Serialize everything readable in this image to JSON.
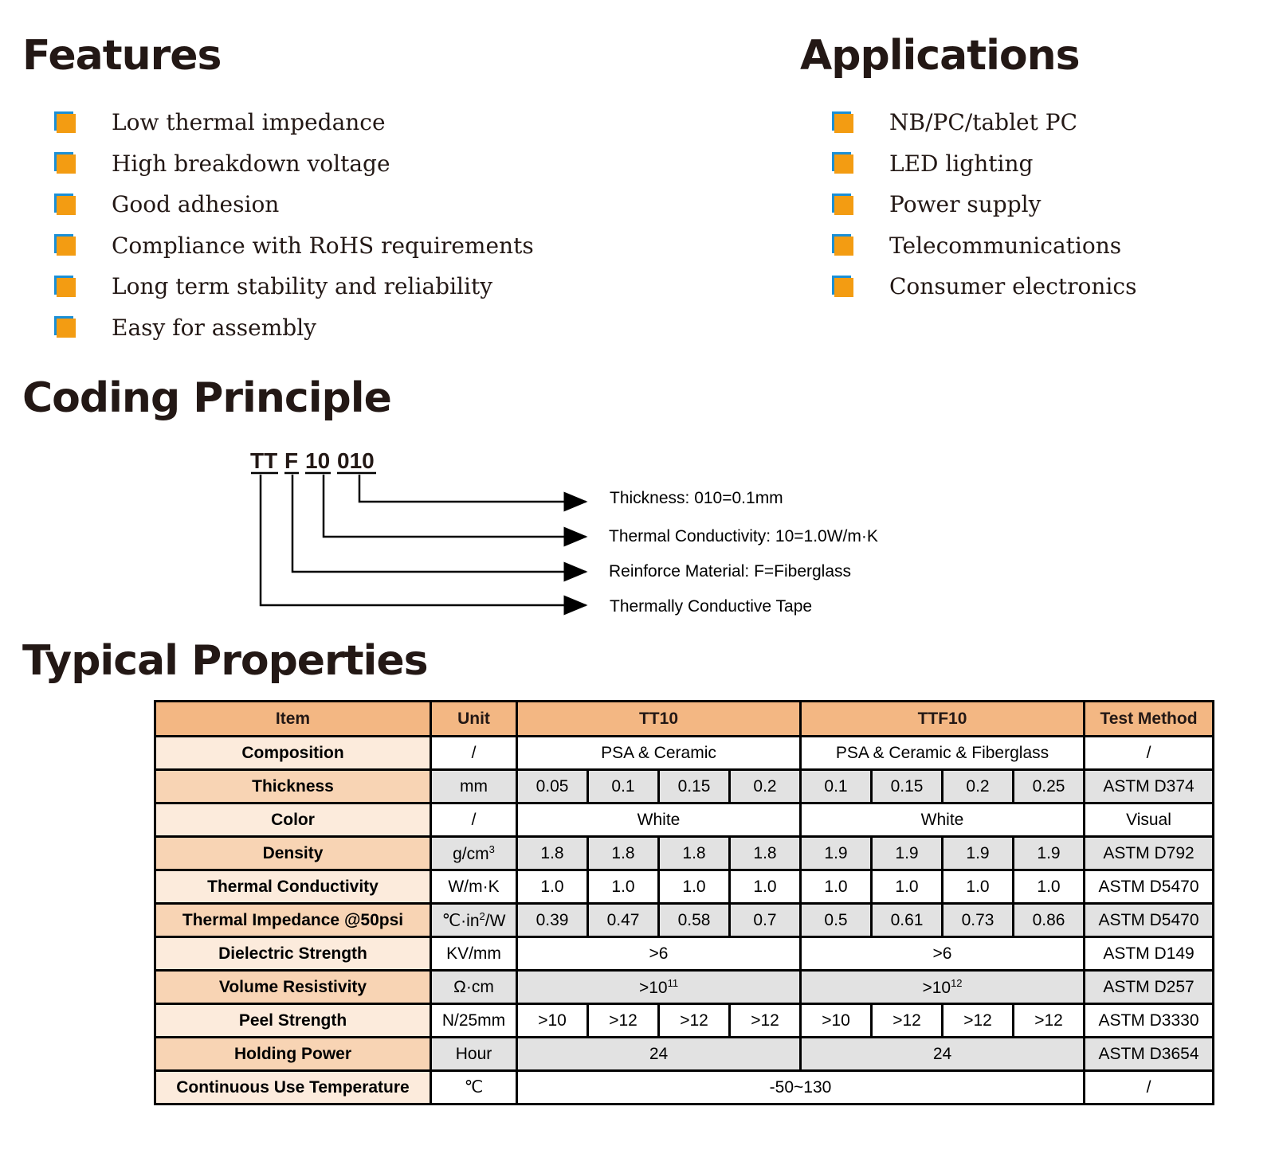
{
  "features": {
    "title": "Features",
    "items": [
      "Low thermal impedance",
      "High breakdown voltage",
      "Good adhesion",
      "Compliance with RoHS requirements",
      "Long term stability and reliability",
      "Easy for assembly"
    ]
  },
  "applications": {
    "title": "Applications",
    "items": [
      "NB/PC/tablet PC",
      "LED lighting",
      "Power supply",
      "Telecommunications",
      "Consumer electronics"
    ]
  },
  "bullet_colors": {
    "front": "#f39c12",
    "back": "#1a8fd6"
  },
  "coding": {
    "title": "Coding Principle",
    "parts": [
      "TT",
      "F",
      "10",
      "010"
    ],
    "labels": [
      "Thickness: 010=0.1mm",
      "Thermal Conductivity: 10=1.0W/m·K",
      "Reinforce Material: F=Fiberglass",
      "Thermally Conductive Tape"
    ]
  },
  "properties": {
    "title": "Typical Properties",
    "headers": [
      "Item",
      "Unit",
      "TT10",
      "TTF10",
      "Test Method"
    ],
    "rows": [
      {
        "item": "Composition",
        "unit": "/",
        "tt10": "PSA & Ceramic",
        "ttf10": "PSA & Ceramic & Fiberglass",
        "method": "/"
      },
      {
        "item": "Thickness",
        "unit": "mm",
        "values": [
          "0.05",
          "0.1",
          "0.15",
          "0.2",
          "0.1",
          "0.15",
          "0.2",
          "0.25"
        ],
        "method": "ASTM D374"
      },
      {
        "item": "Color",
        "unit": "/",
        "tt10": "White",
        "ttf10": "White",
        "method": "Visual"
      },
      {
        "item": "Density",
        "unit": "g/cm",
        "unit_sup": "3",
        "values": [
          "1.8",
          "1.8",
          "1.8",
          "1.8",
          "1.9",
          "1.9",
          "1.9",
          "1.9"
        ],
        "method": "ASTM D792"
      },
      {
        "item": "Thermal Conductivity",
        "unit": "W/m·K",
        "values": [
          "1.0",
          "1.0",
          "1.0",
          "1.0",
          "1.0",
          "1.0",
          "1.0",
          "1.0"
        ],
        "method": "ASTM D5470"
      },
      {
        "item": "Thermal Impedance @50psi",
        "unit": "℃·in",
        "unit_sup": "2",
        "unit_suffix": "/W",
        "values": [
          "0.39",
          "0.47",
          "0.58",
          "0.7",
          "0.5",
          "0.61",
          "0.73",
          "0.86"
        ],
        "method": "ASTM D5470"
      },
      {
        "item": "Dielectric Strength",
        "unit": "KV/mm",
        "tt10": ">6",
        "ttf10": ">6",
        "method": "ASTM D149"
      },
      {
        "item": "Volume Resistivity",
        "unit": "Ω·cm",
        "tt10": ">10",
        "tt10_sup": "11",
        "ttf10": ">10",
        "ttf10_sup": "12",
        "method": "ASTM D257"
      },
      {
        "item": "Peel Strength",
        "unit": "N/25mm",
        "values": [
          ">10",
          ">12",
          ">12",
          ">12",
          ">10",
          ">12",
          ">12",
          ">12"
        ],
        "method": "ASTM D3330"
      },
      {
        "item": "Holding Power",
        "unit": "Hour",
        "tt10": "24",
        "ttf10": "24",
        "method": "ASTM D3654"
      },
      {
        "item": "Continuous Use Temperature",
        "unit": "℃",
        "all": "-50~130",
        "method": "/"
      }
    ]
  }
}
